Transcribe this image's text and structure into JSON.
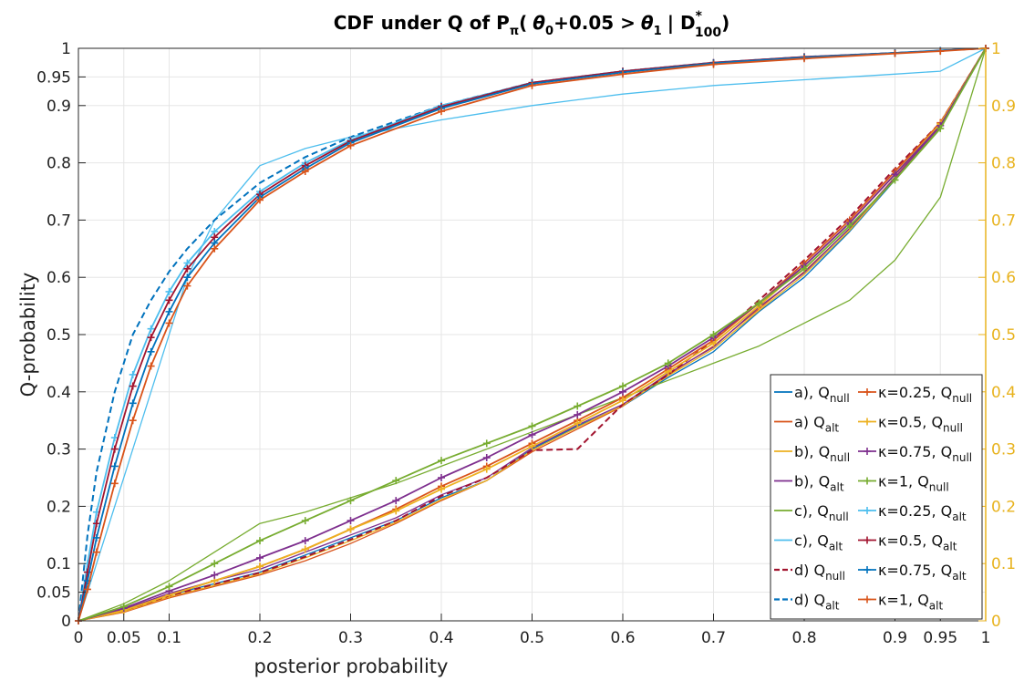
{
  "chart_data": {
    "type": "line",
    "title_parts": {
      "prefix": "CDF under Q of P",
      "prefix_sub": "π",
      "open": "(",
      "theta0": "θ",
      "theta0_sub": "0",
      "middle": "+0.05 >",
      "theta1": "θ",
      "theta1_sub": "1",
      "bar": "| D",
      "d_sup": "*",
      "d_sub": "100",
      "close": ")"
    },
    "xlabel": "posterior probability",
    "ylabel": "Q-probability",
    "xlim": [
      0,
      1
    ],
    "ylim": [
      0,
      1
    ],
    "x_ticks": [
      "0",
      "0.05",
      "0.1",
      "0.2",
      "0.3",
      "0.4",
      "0.5",
      "0.6",
      "0.7",
      "0.8",
      "0.9",
      "0.95",
      "1"
    ],
    "x_tick_values": [
      0,
      0.05,
      0.1,
      0.2,
      0.3,
      0.4,
      0.5,
      0.6,
      0.7,
      0.8,
      0.9,
      0.95,
      1
    ],
    "y_ticks_left": [
      "0",
      "0.05",
      "0.1",
      "0.2",
      "0.3",
      "0.4",
      "0.5",
      "0.6",
      "0.7",
      "0.8",
      "0.9",
      "0.95",
      "1"
    ],
    "y_tick_values": [
      0,
      0.05,
      0.1,
      0.2,
      0.3,
      0.4,
      0.5,
      0.6,
      0.7,
      0.8,
      0.9,
      0.95,
      1
    ],
    "y_ticks_right": [
      "0",
      "0.1",
      "0.2",
      "0.3",
      "0.4",
      "0.5",
      "0.6",
      "0.7",
      "0.8",
      "0.9",
      "1"
    ],
    "y_tick_values_right": [
      0,
      0.1,
      0.2,
      0.3,
      0.4,
      0.5,
      0.6,
      0.7,
      0.8,
      0.9,
      1
    ],
    "grid": true,
    "legend_position": "bottom-right",
    "colors": {
      "blue": "#0072bd",
      "orange": "#d95319",
      "yellow": "#edb120",
      "purple": "#7e2f8e",
      "green": "#77ac30",
      "cyan": "#4dbeee",
      "darkred": "#a2142f",
      "right_axis": "#e8b31f"
    },
    "legend": [
      {
        "label": "a), Q",
        "sub": "null",
        "color": "#0072bd",
        "style": "solid",
        "marker": false
      },
      {
        "label": "a) Q",
        "sub": "alt",
        "color": "#d95319",
        "style": "solid",
        "marker": false
      },
      {
        "label": "b), Q",
        "sub": "null",
        "color": "#edb120",
        "style": "solid",
        "marker": false
      },
      {
        "label": "b), Q",
        "sub": "alt",
        "color": "#7e2f8e",
        "style": "solid",
        "marker": false
      },
      {
        "label": "c), Q",
        "sub": "null",
        "color": "#77ac30",
        "style": "solid",
        "marker": false
      },
      {
        "label": "c), Q",
        "sub": "alt",
        "color": "#4dbeee",
        "style": "solid",
        "marker": false
      },
      {
        "label": "d) Q",
        "sub": "null",
        "color": "#a2142f",
        "style": "dashed",
        "marker": false
      },
      {
        "label": "d) Q",
        "sub": "alt",
        "color": "#0072bd",
        "style": "dashed",
        "marker": false
      },
      {
        "label": "κ=0.25, Q",
        "sub": "null",
        "color": "#d95319",
        "style": "solid",
        "marker": true
      },
      {
        "label": "κ=0.5, Q",
        "sub": "null",
        "color": "#edb120",
        "style": "solid",
        "marker": true
      },
      {
        "label": "κ=0.75, Q",
        "sub": "null",
        "color": "#7e2f8e",
        "style": "solid",
        "marker": true
      },
      {
        "label": "κ=1, Q",
        "sub": "null",
        "color": "#77ac30",
        "style": "solid",
        "marker": true
      },
      {
        "label": "κ=0.25, Q",
        "sub": "alt",
        "color": "#4dbeee",
        "style": "solid",
        "marker": true
      },
      {
        "label": "κ=0.5, Q",
        "sub": "alt",
        "color": "#a2142f",
        "style": "solid",
        "marker": true
      },
      {
        "label": "κ=0.75, Q",
        "sub": "alt",
        "color": "#0072bd",
        "style": "solid",
        "marker": true
      },
      {
        "label": "κ=1, Q",
        "sub": "alt",
        "color": "#d95319",
        "style": "solid",
        "marker": true
      }
    ],
    "series": [
      {
        "color": "#0072bd",
        "style": "solid",
        "marker": false,
        "x": [
          0,
          0.05,
          0.1,
          0.15,
          0.2,
          0.25,
          0.3,
          0.35,
          0.4,
          0.45,
          0.5,
          0.55,
          0.6,
          0.65,
          0.7,
          0.75,
          0.8,
          0.85,
          0.9,
          0.95,
          1
        ],
        "y": [
          0,
          0.018,
          0.045,
          0.065,
          0.085,
          0.115,
          0.145,
          0.175,
          0.215,
          0.245,
          0.3,
          0.34,
          0.375,
          0.425,
          0.47,
          0.54,
          0.6,
          0.68,
          0.77,
          0.86,
          1
        ]
      },
      {
        "color": "#d95319",
        "style": "solid",
        "marker": false,
        "x": [
          0,
          0.05,
          0.1,
          0.15,
          0.2,
          0.25,
          0.3,
          0.35,
          0.4,
          0.45,
          0.5,
          0.55,
          0.6,
          0.65,
          0.7,
          0.75,
          0.8,
          0.85,
          0.9,
          0.95,
          1
        ],
        "y": [
          0,
          0.015,
          0.04,
          0.06,
          0.08,
          0.105,
          0.135,
          0.17,
          0.21,
          0.245,
          0.295,
          0.335,
          0.375,
          0.43,
          0.48,
          0.545,
          0.61,
          0.685,
          0.775,
          0.865,
          1
        ]
      },
      {
        "color": "#edb120",
        "style": "solid",
        "marker": false,
        "x": [
          0,
          0.05,
          0.1,
          0.15,
          0.2,
          0.25,
          0.3,
          0.35,
          0.4,
          0.45,
          0.5,
          0.55,
          0.6,
          0.65,
          0.7,
          0.75,
          0.8,
          0.85,
          0.9,
          0.95,
          1
        ],
        "y": [
          0,
          0.016,
          0.042,
          0.062,
          0.082,
          0.11,
          0.14,
          0.172,
          0.212,
          0.245,
          0.298,
          0.338,
          0.376,
          0.428,
          0.475,
          0.542,
          0.605,
          0.682,
          0.772,
          0.862,
          1
        ]
      },
      {
        "color": "#7e2f8e",
        "style": "solid",
        "marker": false,
        "x": [
          0,
          0.05,
          0.1,
          0.15,
          0.2,
          0.25,
          0.3,
          0.35,
          0.4,
          0.45,
          0.5,
          0.55,
          0.6,
          0.65,
          0.7,
          0.75,
          0.8,
          0.85,
          0.9,
          0.95,
          1
        ],
        "y": [
          0,
          0.02,
          0.048,
          0.07,
          0.09,
          0.12,
          0.15,
          0.18,
          0.22,
          0.25,
          0.302,
          0.342,
          0.378,
          0.432,
          0.478,
          0.548,
          0.608,
          0.686,
          0.774,
          0.864,
          1
        ]
      },
      {
        "color": "#77ac30",
        "style": "solid",
        "marker": false,
        "x": [
          0,
          0.05,
          0.1,
          0.15,
          0.2,
          0.25,
          0.3,
          0.35,
          0.4,
          0.45,
          0.5,
          0.55,
          0.6,
          0.65,
          0.7,
          0.75,
          0.8,
          0.85,
          0.9,
          0.95,
          1
        ],
        "y": [
          0,
          0.03,
          0.07,
          0.12,
          0.17,
          0.19,
          0.215,
          0.24,
          0.27,
          0.3,
          0.33,
          0.36,
          0.39,
          0.42,
          0.45,
          0.48,
          0.52,
          0.56,
          0.63,
          0.74,
          1
        ]
      },
      {
        "color": "#4dbeee",
        "style": "solid",
        "marker": false,
        "x": [
          0,
          0.02,
          0.04,
          0.06,
          0.08,
          0.1,
          0.12,
          0.15,
          0.2,
          0.25,
          0.3,
          0.4,
          0.5,
          0.6,
          0.7,
          0.8,
          0.9,
          0.95,
          1
        ],
        "y": [
          0,
          0.1,
          0.2,
          0.3,
          0.4,
          0.5,
          0.6,
          0.7,
          0.795,
          0.825,
          0.845,
          0.875,
          0.9,
          0.92,
          0.935,
          0.945,
          0.955,
          0.96,
          1
        ]
      },
      {
        "color": "#a2142f",
        "style": "dashed",
        "marker": false,
        "x": [
          0,
          0.05,
          0.1,
          0.15,
          0.2,
          0.25,
          0.3,
          0.35,
          0.4,
          0.45,
          0.5,
          0.55,
          0.6,
          0.65,
          0.7,
          0.75,
          0.8,
          0.85,
          0.9,
          0.95,
          1
        ],
        "y": [
          0,
          0.018,
          0.044,
          0.064,
          0.084,
          0.112,
          0.142,
          0.175,
          0.218,
          0.25,
          0.298,
          0.3,
          0.378,
          0.43,
          0.49,
          0.56,
          0.63,
          0.705,
          0.79,
          0.87,
          1
        ]
      },
      {
        "color": "#0072bd",
        "style": "dashed",
        "marker": false,
        "x": [
          0,
          0.01,
          0.02,
          0.04,
          0.06,
          0.08,
          0.1,
          0.12,
          0.15,
          0.2,
          0.25,
          0.3,
          0.4,
          0.5,
          0.6,
          0.7,
          0.8,
          0.9,
          0.95,
          1
        ],
        "y": [
          0,
          0.15,
          0.26,
          0.4,
          0.5,
          0.56,
          0.61,
          0.65,
          0.7,
          0.765,
          0.81,
          0.845,
          0.9,
          0.94,
          0.96,
          0.975,
          0.985,
          0.992,
          0.996,
          1
        ]
      },
      {
        "color": "#d95319",
        "style": "solid",
        "marker": true,
        "x": [
          0,
          0.05,
          0.1,
          0.15,
          0.2,
          0.25,
          0.3,
          0.35,
          0.4,
          0.45,
          0.5,
          0.55,
          0.6,
          0.65,
          0.7,
          0.75,
          0.8,
          0.85,
          0.9,
          0.95,
          1
        ],
        "y": [
          0,
          0.018,
          0.045,
          0.07,
          0.095,
          0.125,
          0.16,
          0.195,
          0.235,
          0.27,
          0.31,
          0.35,
          0.39,
          0.44,
          0.49,
          0.555,
          0.625,
          0.7,
          0.785,
          0.87,
          1
        ]
      },
      {
        "color": "#edb120",
        "style": "solid",
        "marker": true,
        "x": [
          0,
          0.05,
          0.1,
          0.15,
          0.2,
          0.25,
          0.3,
          0.35,
          0.4,
          0.45,
          0.5,
          0.55,
          0.6,
          0.65,
          0.7,
          0.75,
          0.8,
          0.85,
          0.9,
          0.95,
          1
        ],
        "y": [
          0,
          0.018,
          0.045,
          0.07,
          0.095,
          0.125,
          0.16,
          0.192,
          0.23,
          0.265,
          0.305,
          0.345,
          0.385,
          0.435,
          0.485,
          0.55,
          0.62,
          0.695,
          0.78,
          0.868,
          1
        ]
      },
      {
        "color": "#7e2f8e",
        "style": "solid",
        "marker": true,
        "x": [
          0,
          0.05,
          0.1,
          0.15,
          0.2,
          0.25,
          0.3,
          0.35,
          0.4,
          0.45,
          0.5,
          0.55,
          0.6,
          0.65,
          0.7,
          0.75,
          0.8,
          0.85,
          0.9,
          0.95,
          1
        ],
        "y": [
          0,
          0.022,
          0.052,
          0.08,
          0.11,
          0.14,
          0.175,
          0.21,
          0.25,
          0.285,
          0.325,
          0.36,
          0.4,
          0.445,
          0.495,
          0.555,
          0.62,
          0.695,
          0.78,
          0.865,
          1
        ]
      },
      {
        "color": "#77ac30",
        "style": "solid",
        "marker": true,
        "x": [
          0,
          0.05,
          0.1,
          0.15,
          0.2,
          0.25,
          0.3,
          0.35,
          0.4,
          0.45,
          0.5,
          0.55,
          0.6,
          0.65,
          0.7,
          0.75,
          0.8,
          0.85,
          0.9,
          0.95,
          1
        ],
        "y": [
          0,
          0.025,
          0.06,
          0.1,
          0.14,
          0.175,
          0.21,
          0.245,
          0.28,
          0.31,
          0.34,
          0.375,
          0.41,
          0.45,
          0.5,
          0.555,
          0.615,
          0.69,
          0.77,
          0.86,
          1
        ]
      },
      {
        "color": "#4dbeee",
        "style": "solid",
        "marker": true,
        "x": [
          0,
          0.01,
          0.02,
          0.04,
          0.06,
          0.08,
          0.1,
          0.12,
          0.15,
          0.2,
          0.25,
          0.3,
          0.4,
          0.5,
          0.6,
          0.7,
          0.8,
          0.9,
          0.95,
          1
        ],
        "y": [
          0,
          0.1,
          0.19,
          0.32,
          0.43,
          0.51,
          0.575,
          0.625,
          0.68,
          0.75,
          0.8,
          0.84,
          0.9,
          0.94,
          0.96,
          0.975,
          0.985,
          0.992,
          0.996,
          1
        ]
      },
      {
        "color": "#a2142f",
        "style": "solid",
        "marker": true,
        "x": [
          0,
          0.01,
          0.02,
          0.04,
          0.06,
          0.08,
          0.1,
          0.12,
          0.15,
          0.2,
          0.25,
          0.3,
          0.4,
          0.5,
          0.6,
          0.7,
          0.8,
          0.9,
          0.95,
          1
        ],
        "y": [
          0,
          0.085,
          0.17,
          0.3,
          0.41,
          0.495,
          0.56,
          0.615,
          0.67,
          0.745,
          0.795,
          0.838,
          0.898,
          0.94,
          0.96,
          0.975,
          0.985,
          0.992,
          0.996,
          1
        ]
      },
      {
        "color": "#0072bd",
        "style": "solid",
        "marker": true,
        "x": [
          0,
          0.01,
          0.02,
          0.04,
          0.06,
          0.08,
          0.1,
          0.12,
          0.15,
          0.2,
          0.25,
          0.3,
          0.4,
          0.5,
          0.6,
          0.7,
          0.8,
          0.9,
          0.95,
          1
        ],
        "y": [
          0,
          0.07,
          0.145,
          0.27,
          0.38,
          0.47,
          0.54,
          0.6,
          0.66,
          0.74,
          0.79,
          0.835,
          0.895,
          0.938,
          0.958,
          0.974,
          0.984,
          0.992,
          0.996,
          1
        ]
      },
      {
        "color": "#d95319",
        "style": "solid",
        "marker": true,
        "x": [
          0,
          0.01,
          0.02,
          0.04,
          0.06,
          0.08,
          0.1,
          0.12,
          0.15,
          0.2,
          0.25,
          0.3,
          0.4,
          0.5,
          0.6,
          0.7,
          0.8,
          0.9,
          0.95,
          1
        ],
        "y": [
          0,
          0.055,
          0.12,
          0.24,
          0.35,
          0.445,
          0.52,
          0.585,
          0.65,
          0.735,
          0.785,
          0.83,
          0.89,
          0.935,
          0.955,
          0.972,
          0.982,
          0.991,
          0.995,
          1
        ]
      }
    ]
  }
}
